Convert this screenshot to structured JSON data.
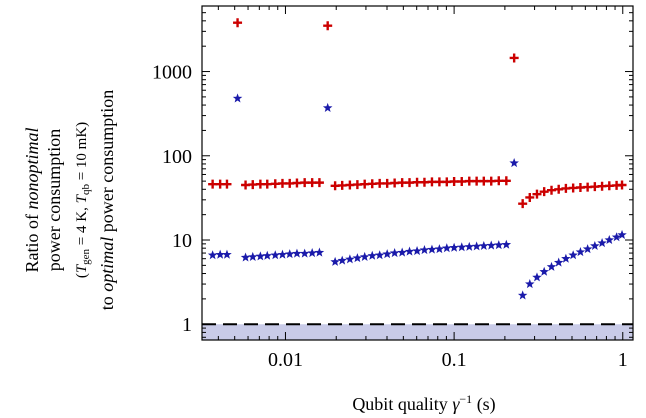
{
  "chart_data": {
    "type": "scatter",
    "x_scale": "log",
    "y_scale": "log",
    "xlim": [
      0.0032,
      1.15
    ],
    "ylim": [
      0.65,
      6000
    ],
    "x_ticks": [
      0.01,
      0.1,
      1
    ],
    "x_tick_labels": [
      "0.01",
      "0.1",
      "1"
    ],
    "y_ticks": [
      1,
      10,
      100,
      1000
    ],
    "y_tick_labels": [
      "1",
      "10",
      "100",
      "1000"
    ],
    "xlabel": "Qubit quality γ⁻¹ (s)",
    "ylabel": {
      "line1_prefix": "Ratio of ",
      "line1_italic": "nonoptimal",
      "line2": "power consumption",
      "line3": "(T_gen = 4 K, T_qb = 10 mK)",
      "line4_prefix": "to ",
      "line4_italic": "optimal",
      "line4_suffix": " power consumption"
    },
    "reference_line": {
      "y": 1,
      "style": "dashed",
      "shaded_below": true,
      "shade_color": "#c9cbe8"
    },
    "grid": false,
    "series": [
      {
        "marker": "cross",
        "color": "#cc0000",
        "points": [
          [
            0.0037,
            46
          ],
          [
            0.0041,
            46
          ],
          [
            0.0045,
            46
          ],
          [
            0.0052,
            3800
          ],
          [
            0.0058,
            45
          ],
          [
            0.0064,
            45.5
          ],
          [
            0.0071,
            46
          ],
          [
            0.0078,
            46
          ],
          [
            0.0087,
            46.5
          ],
          [
            0.0096,
            47
          ],
          [
            0.0106,
            47
          ],
          [
            0.0117,
            47.5
          ],
          [
            0.013,
            48
          ],
          [
            0.0144,
            48
          ],
          [
            0.0159,
            48
          ],
          [
            0.0178,
            3500
          ],
          [
            0.0197,
            44
          ],
          [
            0.0217,
            44.5
          ],
          [
            0.0241,
            45
          ],
          [
            0.0267,
            45.5
          ],
          [
            0.0295,
            46
          ],
          [
            0.0327,
            46.5
          ],
          [
            0.0362,
            47
          ],
          [
            0.0401,
            47
          ],
          [
            0.0444,
            47.5
          ],
          [
            0.0492,
            48
          ],
          [
            0.0544,
            48
          ],
          [
            0.0603,
            48.5
          ],
          [
            0.0667,
            48.5
          ],
          [
            0.0739,
            49
          ],
          [
            0.0818,
            49
          ],
          [
            0.0905,
            49
          ],
          [
            0.1,
            49.5
          ],
          [
            0.111,
            49.5
          ],
          [
            0.123,
            50
          ],
          [
            0.136,
            50
          ],
          [
            0.15,
            50
          ],
          [
            0.166,
            50
          ],
          [
            0.184,
            50.5
          ],
          [
            0.204,
            50.5
          ],
          [
            0.227,
            1450
          ],
          [
            0.255,
            27
          ],
          [
            0.281,
            32
          ],
          [
            0.31,
            35
          ],
          [
            0.342,
            37.5
          ],
          [
            0.378,
            39
          ],
          [
            0.417,
            40
          ],
          [
            0.46,
            41
          ],
          [
            0.508,
            41.5
          ],
          [
            0.561,
            42
          ],
          [
            0.619,
            42.5
          ],
          [
            0.683,
            43
          ],
          [
            0.754,
            43.5
          ],
          [
            0.832,
            44
          ],
          [
            0.919,
            44.5
          ],
          [
            0.99,
            45
          ]
        ]
      },
      {
        "marker": "star",
        "color": "#1a1aaa",
        "points": [
          [
            0.0037,
            6.6
          ],
          [
            0.0041,
            6.7
          ],
          [
            0.0045,
            6.7
          ],
          [
            0.0052,
            480
          ],
          [
            0.0058,
            6.2
          ],
          [
            0.0064,
            6.3
          ],
          [
            0.0071,
            6.4
          ],
          [
            0.0078,
            6.5
          ],
          [
            0.0087,
            6.6
          ],
          [
            0.0096,
            6.7
          ],
          [
            0.0106,
            6.8
          ],
          [
            0.0117,
            6.9
          ],
          [
            0.013,
            6.9
          ],
          [
            0.0144,
            7.0
          ],
          [
            0.0159,
            7.1
          ],
          [
            0.0178,
            370
          ],
          [
            0.0197,
            5.5
          ],
          [
            0.0217,
            5.7
          ],
          [
            0.0241,
            5.9
          ],
          [
            0.0267,
            6.1
          ],
          [
            0.0295,
            6.3
          ],
          [
            0.0327,
            6.5
          ],
          [
            0.0362,
            6.6
          ],
          [
            0.0401,
            6.8
          ],
          [
            0.0444,
            7.0
          ],
          [
            0.0492,
            7.1
          ],
          [
            0.0544,
            7.3
          ],
          [
            0.0603,
            7.4
          ],
          [
            0.0667,
            7.6
          ],
          [
            0.0739,
            7.7
          ],
          [
            0.0818,
            7.8
          ],
          [
            0.0905,
            8.0
          ],
          [
            0.1,
            8.1
          ],
          [
            0.111,
            8.2
          ],
          [
            0.123,
            8.3
          ],
          [
            0.136,
            8.4
          ],
          [
            0.15,
            8.5
          ],
          [
            0.166,
            8.6
          ],
          [
            0.184,
            8.7
          ],
          [
            0.204,
            8.8
          ],
          [
            0.227,
            82
          ],
          [
            0.255,
            2.2
          ],
          [
            0.281,
            3.0
          ],
          [
            0.31,
            3.6
          ],
          [
            0.342,
            4.2
          ],
          [
            0.378,
            4.8
          ],
          [
            0.417,
            5.4
          ],
          [
            0.46,
            6.0
          ],
          [
            0.508,
            6.6
          ],
          [
            0.561,
            7.2
          ],
          [
            0.619,
            7.8
          ],
          [
            0.683,
            8.5
          ],
          [
            0.754,
            9.2
          ],
          [
            0.832,
            10.0
          ],
          [
            0.919,
            10.8
          ],
          [
            0.99,
            11.5
          ]
        ]
      }
    ]
  }
}
